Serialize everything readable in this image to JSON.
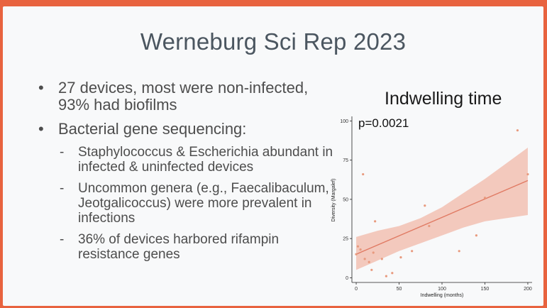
{
  "slide": {
    "title": "Werneburg Sci Rep 2023",
    "bullets": [
      {
        "text": "27 devices, most were non-infected, 93% had biofilms"
      },
      {
        "text": "Bacterial gene sequencing:"
      }
    ],
    "sub_bullets": [
      {
        "text": "Staphylococcus & Escherichia abundant in infected & uninfected devices"
      },
      {
        "text": "Uncommon genera (e.g., Faecalibaculum, Jeotgalicoccus) were more prevalent in infections"
      },
      {
        "text": "36% of devices harbored rifampin resistance genes"
      }
    ]
  },
  "chart_data": {
    "type": "scatter",
    "title": "Indwelling time",
    "annotation": "p=0.0021",
    "xlabel": "Indwelling (months)",
    "ylabel": "Diversity (Margalef)",
    "xlim": [
      -5,
      205
    ],
    "ylim": [
      -3,
      102
    ],
    "x_ticks": [
      "0",
      "50",
      "100",
      "150",
      "200"
    ],
    "y_ticks": [
      "0",
      "25",
      "50",
      "75",
      "100"
    ],
    "x_tick_values": [
      0,
      50,
      100,
      150,
      200
    ],
    "y_tick_values": [
      0,
      25,
      50,
      75,
      100
    ],
    "points": [
      {
        "x": 0,
        "y": 15
      },
      {
        "x": 2,
        "y": 20
      },
      {
        "x": 5,
        "y": 18
      },
      {
        "x": 8,
        "y": 66
      },
      {
        "x": 10,
        "y": 12
      },
      {
        "x": 15,
        "y": 10
      },
      {
        "x": 18,
        "y": 5
      },
      {
        "x": 20,
        "y": 16
      },
      {
        "x": 22,
        "y": 36
      },
      {
        "x": 30,
        "y": 12
      },
      {
        "x": 35,
        "y": 1
      },
      {
        "x": 42,
        "y": 3
      },
      {
        "x": 52,
        "y": 13
      },
      {
        "x": 65,
        "y": 17
      },
      {
        "x": 80,
        "y": 46
      },
      {
        "x": 85,
        "y": 33
      },
      {
        "x": 120,
        "y": 17
      },
      {
        "x": 140,
        "y": 27
      },
      {
        "x": 150,
        "y": 51
      },
      {
        "x": 188,
        "y": 94
      },
      {
        "x": 200,
        "y": 66
      }
    ],
    "fit_line": {
      "x": [
        0,
        200
      ],
      "y": [
        15,
        62
      ]
    },
    "confidence_band": {
      "x": [
        0,
        25,
        50,
        75,
        100,
        125,
        150,
        175,
        200
      ],
      "upper": [
        26,
        30,
        33,
        38,
        45,
        54,
        63,
        73,
        83
      ],
      "lower": [
        5,
        11,
        17,
        22,
        27,
        32,
        36,
        38,
        40
      ]
    },
    "colors": {
      "band": "#f2b8a8",
      "line": "#e07a63",
      "point": "#e89a7e"
    }
  }
}
